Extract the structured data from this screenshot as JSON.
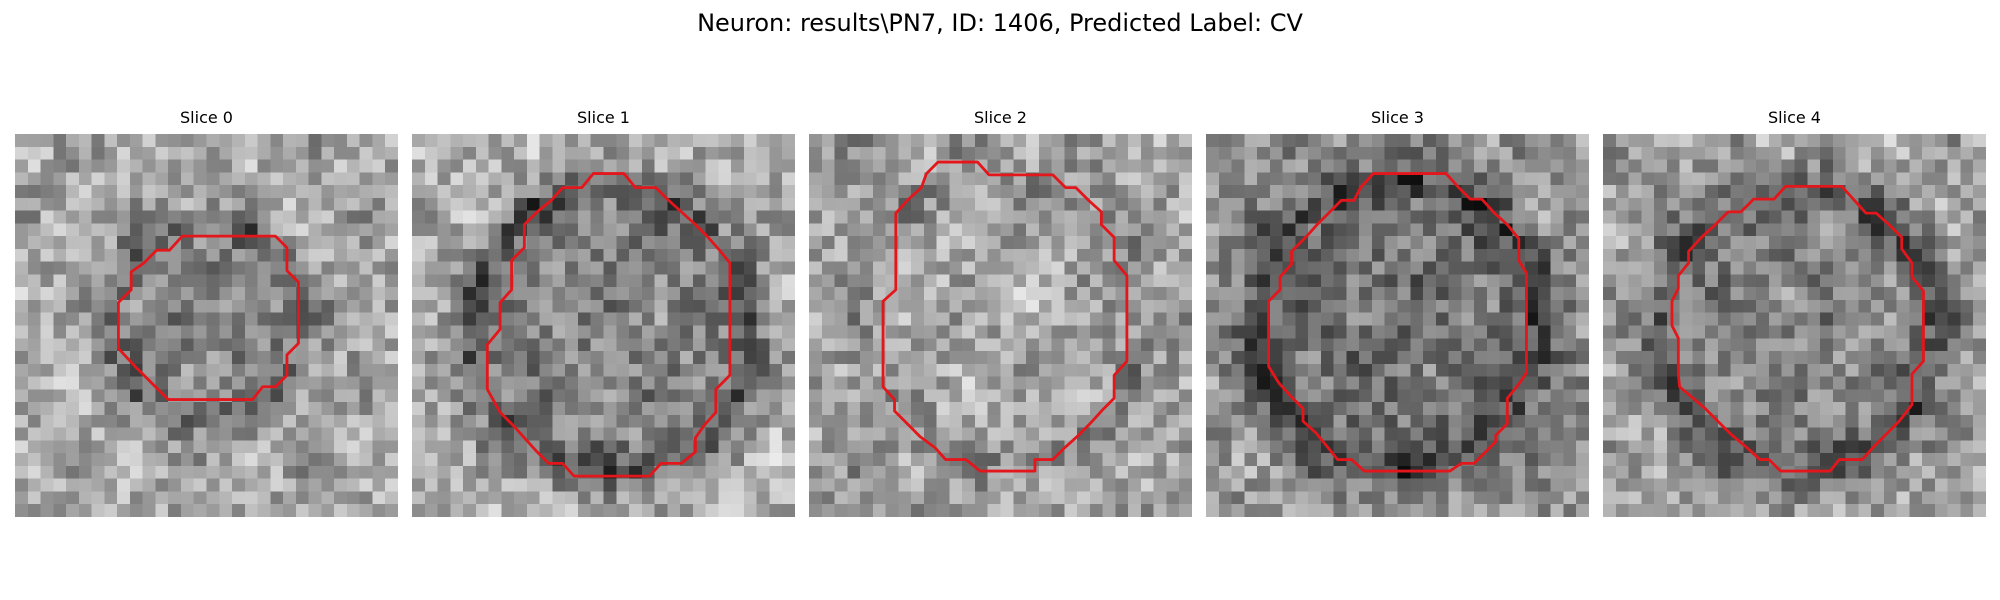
{
  "figure": {
    "title": "Neuron: results\\PN7, ID: 1406, Predicted Label: CV"
  },
  "colors": {
    "contour": "#e3161b",
    "background": "#ffffff"
  },
  "panels": [
    {
      "title": "Slice 0",
      "contour": [
        [
          14.7,
          8
        ],
        [
          20.4,
          8
        ],
        [
          21.3,
          8.9
        ],
        [
          21.3,
          10.7
        ],
        [
          22.2,
          11.6
        ],
        [
          22.2,
          16.4
        ],
        [
          21.3,
          17.3
        ],
        [
          21.3,
          18.9
        ],
        [
          20.4,
          19.8
        ],
        [
          19.4,
          19.8
        ],
        [
          18.6,
          20.8
        ],
        [
          12,
          20.8
        ],
        [
          11,
          19.8
        ],
        [
          10.1,
          18.9
        ],
        [
          9.4,
          18.2
        ],
        [
          8.1,
          16.8
        ],
        [
          8.1,
          13.2
        ],
        [
          9.1,
          12.2
        ],
        [
          9.1,
          10.8
        ],
        [
          10.1,
          10.1
        ],
        [
          11.1,
          9.1
        ],
        [
          12.1,
          9.1
        ],
        [
          13.1,
          8
        ]
      ],
      "scene": {
        "blobCx": 15,
        "blobCy": 14.7,
        "blobR": 8.3,
        "blobDark": 60,
        "ringDark": 30,
        "innerTint": 0,
        "baseBright": 168,
        "seed": 11
      }
    },
    {
      "title": "Slice 1",
      "contour": [
        [
          13.3,
          4.2
        ],
        [
          14.2,
          3.1
        ],
        [
          16.6,
          3.1
        ],
        [
          17.5,
          4.2
        ],
        [
          19.1,
          4.2
        ],
        [
          20,
          5.1
        ],
        [
          21.1,
          6.1
        ],
        [
          22.2,
          7.1
        ],
        [
          23.2,
          8.1
        ],
        [
          24,
          9
        ],
        [
          24.9,
          10.1
        ],
        [
          24.9,
          18.9
        ],
        [
          23.8,
          20
        ],
        [
          23.8,
          21.8
        ],
        [
          22.9,
          22.8
        ],
        [
          22.2,
          23.8
        ],
        [
          22.2,
          24.9
        ],
        [
          21.1,
          25.8
        ],
        [
          19.5,
          25.8
        ],
        [
          18.6,
          26.8
        ],
        [
          12.7,
          26.8
        ],
        [
          11.8,
          25.8
        ],
        [
          10.7,
          25.8
        ],
        [
          9.8,
          24.9
        ],
        [
          8.8,
          23.8
        ],
        [
          7.9,
          22.8
        ],
        [
          6.9,
          21.8
        ],
        [
          5.9,
          20
        ],
        [
          5.9,
          16.5
        ],
        [
          6.9,
          15.3
        ],
        [
          6.9,
          13.2
        ],
        [
          7.8,
          12.2
        ],
        [
          7.8,
          9.9
        ],
        [
          8.8,
          8.9
        ],
        [
          8.8,
          7.1
        ],
        [
          9.8,
          6.1
        ],
        [
          10.9,
          5.2
        ],
        [
          11.8,
          4.2
        ]
      ],
      "scene": {
        "blobCx": 15.6,
        "blobCy": 15.4,
        "blobR": 11.7,
        "blobDark": 55,
        "ringDark": 55,
        "innerTint": 10,
        "baseBright": 176,
        "seed": 23
      }
    },
    {
      "title": "Slice 2",
      "contour": [
        [
          10.1,
          2.2
        ],
        [
          13.2,
          2.2
        ],
        [
          14.1,
          3.2
        ],
        [
          19.1,
          3.2
        ],
        [
          20.1,
          4.2
        ],
        [
          20.9,
          4.2
        ],
        [
          21.9,
          5.2
        ],
        [
          22.9,
          6.1
        ],
        [
          22.9,
          7.1
        ],
        [
          23.9,
          8.1
        ],
        [
          23.9,
          9.9
        ],
        [
          24.9,
          11.1
        ],
        [
          24.9,
          17.8
        ],
        [
          23.9,
          18.9
        ],
        [
          23.9,
          20.7
        ],
        [
          23,
          21.6
        ],
        [
          22,
          22.7
        ],
        [
          21,
          23.7
        ],
        [
          20,
          24.6
        ],
        [
          19.1,
          25.5
        ],
        [
          17.7,
          25.5
        ],
        [
          17.7,
          26.4
        ],
        [
          13.4,
          26.4
        ],
        [
          12.3,
          25.5
        ],
        [
          10.7,
          25.5
        ],
        [
          9.9,
          24.6
        ],
        [
          8.7,
          23.7
        ],
        [
          7.7,
          22.7
        ],
        [
          6.7,
          21.7
        ],
        [
          6.7,
          20.8
        ],
        [
          5.8,
          19.8
        ],
        [
          5.8,
          13.1
        ],
        [
          6.8,
          12.2
        ],
        [
          6.8,
          6.2
        ],
        [
          7.8,
          5.1
        ],
        [
          8.8,
          4.2
        ],
        [
          9.2,
          3.1
        ]
      ],
      "scene": {
        "blobCx": 14.8,
        "blobCy": 14.6,
        "blobR": 10.8,
        "blobDark": -15,
        "ringDark": 22,
        "innerTint": 0,
        "baseBright": 160,
        "seed": 37
      }
    },
    {
      "title": "Slice 3",
      "contour": [
        [
          12.1,
          4.2
        ],
        [
          13.1,
          3.1
        ],
        [
          18.8,
          3.1
        ],
        [
          19.8,
          4.2
        ],
        [
          20.7,
          5.1
        ],
        [
          21.6,
          5.1
        ],
        [
          22.6,
          6.2
        ],
        [
          23.6,
          7.1
        ],
        [
          24.5,
          8.2
        ],
        [
          24.5,
          9.9
        ],
        [
          25.1,
          10.9
        ],
        [
          25.1,
          18.7
        ],
        [
          24.5,
          19.6
        ],
        [
          23.6,
          20.7
        ],
        [
          23.6,
          22.7
        ],
        [
          22.7,
          23.6
        ],
        [
          22.7,
          24.1
        ],
        [
          21,
          25.8
        ],
        [
          20,
          25.8
        ],
        [
          19.1,
          26.4
        ],
        [
          12.4,
          26.4
        ],
        [
          11.4,
          25.5
        ],
        [
          10.3,
          25.5
        ],
        [
          9.5,
          24.5
        ],
        [
          8.6,
          23.4
        ],
        [
          7.6,
          22.5
        ],
        [
          7.6,
          21.5
        ],
        [
          6.6,
          20.5
        ],
        [
          5.7,
          19.5
        ],
        [
          4.9,
          18.2
        ],
        [
          4.9,
          13.1
        ],
        [
          5.8,
          12.2
        ],
        [
          5.8,
          11.2
        ],
        [
          6.7,
          10.2
        ],
        [
          6.7,
          9.2
        ],
        [
          7.8,
          8.1
        ],
        [
          8.7,
          7.1
        ],
        [
          9.7,
          6.1
        ],
        [
          10.6,
          5.2
        ],
        [
          11.6,
          5.2
        ]
      ],
      "scene": {
        "blobCx": 15.1,
        "blobCy": 15,
        "blobR": 11.7,
        "blobDark": 40,
        "ringDark": 60,
        "innerTint": 8,
        "baseBright": 148,
        "seed": 53
      }
    },
    {
      "title": "Slice 4",
      "contour": [
        [
          13.4,
          5.1
        ],
        [
          14.3,
          4.1
        ],
        [
          18.7,
          4.1
        ],
        [
          19.6,
          5.1
        ],
        [
          20.6,
          6.2
        ],
        [
          21.4,
          6.2
        ],
        [
          22.4,
          7.1
        ],
        [
          23.4,
          8.1
        ],
        [
          23.4,
          9
        ],
        [
          24.2,
          10.1
        ],
        [
          24.2,
          11.2
        ],
        [
          25.1,
          12.3
        ],
        [
          25.1,
          17.8
        ],
        [
          24.2,
          18.8
        ],
        [
          24.2,
          21.2
        ],
        [
          23.2,
          22.5
        ],
        [
          22.2,
          23.5
        ],
        [
          21.2,
          24.5
        ],
        [
          20.3,
          25.5
        ],
        [
          18.5,
          25.5
        ],
        [
          17.8,
          26.4
        ],
        [
          13.9,
          26.4
        ],
        [
          13,
          25.5
        ],
        [
          12.3,
          25.5
        ],
        [
          11.2,
          24.5
        ],
        [
          10,
          23.5
        ],
        [
          9,
          22.5
        ],
        [
          8,
          21.5
        ],
        [
          6,
          19.8
        ],
        [
          5.9,
          18.8
        ],
        [
          5.9,
          16
        ],
        [
          5.4,
          15
        ],
        [
          5.4,
          13.1
        ],
        [
          5.9,
          12.1
        ],
        [
          5.9,
          11.1
        ],
        [
          6.7,
          10.1
        ],
        [
          6.7,
          9.2
        ],
        [
          7.7,
          8.1
        ],
        [
          8.8,
          7.1
        ],
        [
          9.8,
          6.1
        ],
        [
          10.8,
          6.1
        ],
        [
          11.8,
          5.1
        ]
      ],
      "scene": {
        "blobCx": 15.3,
        "blobCy": 15.3,
        "blobR": 11.2,
        "blobDark": 35,
        "ringDark": 58,
        "innerTint": 6,
        "baseBright": 160,
        "seed": 71
      }
    }
  ]
}
